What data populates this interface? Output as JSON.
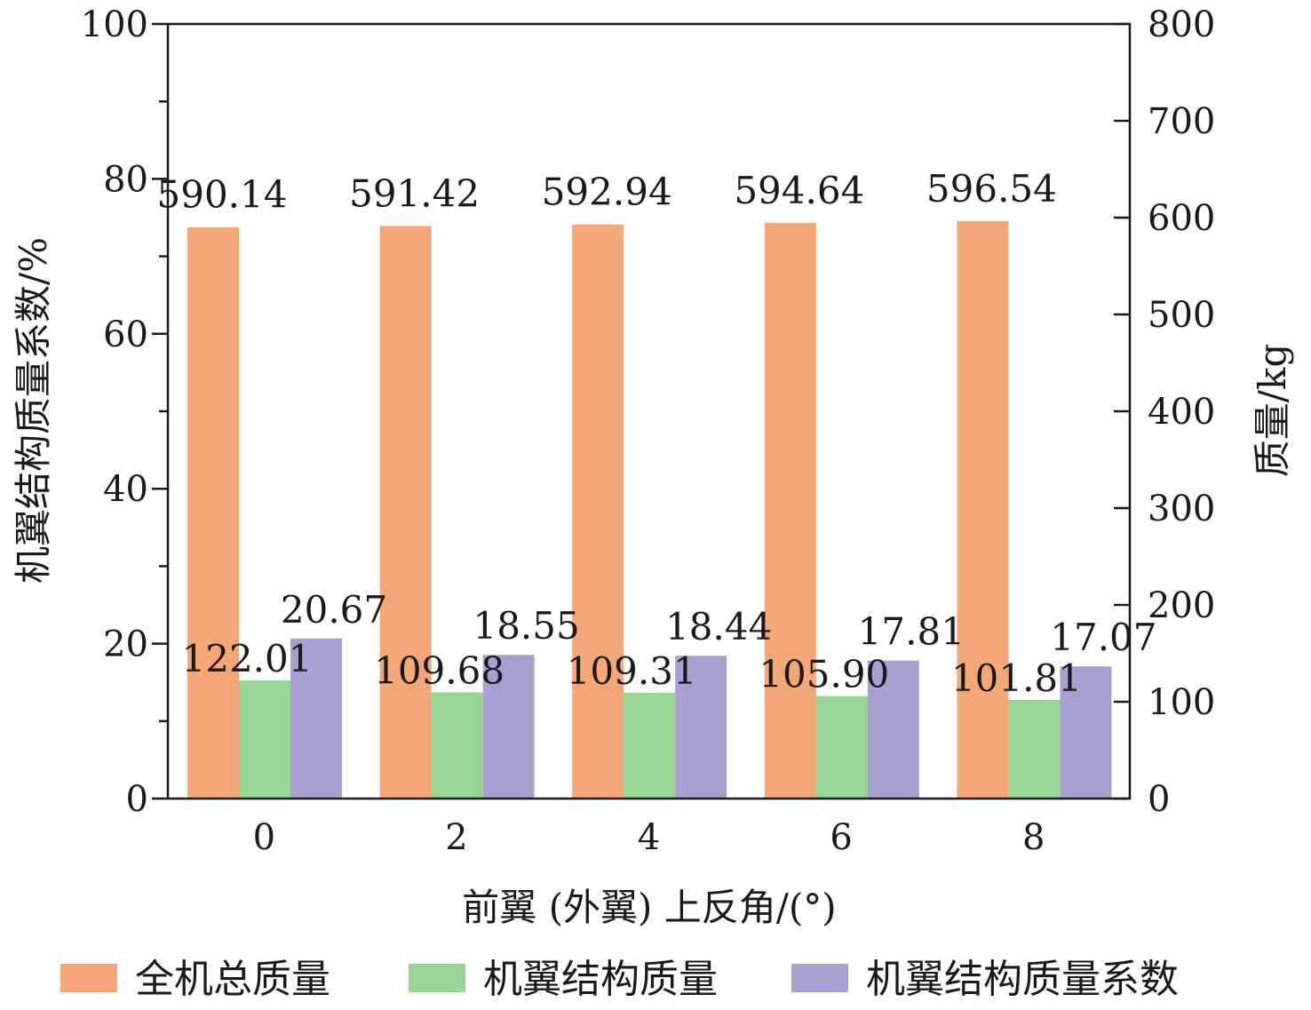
{
  "chart_data": {
    "type": "bar",
    "xlabel": "前翼 (外翼) 上反角/(°)",
    "ylabel_left": "机翼结构质量系数/%",
    "ylabel_right": "质量/kg",
    "categories": [
      "0",
      "2",
      "4",
      "6",
      "8"
    ],
    "ylim_left": [
      0,
      100
    ],
    "ylim_right": [
      0,
      800
    ],
    "yticks_left": [
      0,
      20,
      40,
      60,
      80,
      100
    ],
    "yticks_right": [
      0,
      100,
      200,
      300,
      400,
      500,
      600,
      700,
      800
    ],
    "grid": false,
    "legend_position": "bottom",
    "series": [
      {
        "name": "全机总质量",
        "axis": "right",
        "color": "#f5a877",
        "values": [
          590.14,
          591.42,
          592.94,
          594.64,
          596.54
        ],
        "labels": [
          "590.14",
          "591.42",
          "592.94",
          "594.64",
          "596.54"
        ]
      },
      {
        "name": "机翼结构质量",
        "axis": "right",
        "color": "#98d398",
        "values": [
          122.01,
          109.68,
          109.31,
          105.9,
          101.81
        ],
        "labels": [
          "122.01",
          "109.68",
          "109.31",
          "105.90",
          "101.81"
        ]
      },
      {
        "name": "机翼结构质量系数",
        "axis": "left",
        "color": "#a7a1d1",
        "values": [
          20.67,
          18.55,
          18.44,
          17.81,
          17.07
        ],
        "labels": [
          "20.67",
          "18.55",
          "18.44",
          "17.81",
          "17.07"
        ]
      }
    ]
  }
}
